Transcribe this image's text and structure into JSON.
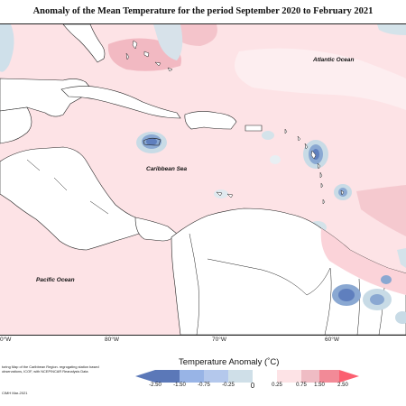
{
  "title": "Anomaly of the Mean Temperature for the period September 2020 to February 2021",
  "labels": {
    "atlantic": "Atlantic Ocean",
    "caribbean": "Caribbean Sea",
    "pacific": "Pacific Ocean"
  },
  "longitudes": [
    "0°W",
    "80°W",
    "70°W",
    "60°W"
  ],
  "footnote": "toring Map of the Caribbean Region. regrogating station based observations, ICOF, with NCEP/NCAR Reanalysis Data",
  "copyright": "CIMH Mar-2021",
  "legend": {
    "title": "Temperature Anomaly (˚C)",
    "ticks": [
      "-2.50",
      "-1.50",
      "-0.75",
      "-0.25",
      "0",
      "0.25",
      "0.75",
      "1.50",
      "2.50"
    ],
    "colors": [
      "#5b78b8",
      "#98b4e6",
      "#b4c8ec",
      "#cfdfe8",
      "#ffffff",
      "#fde3e6",
      "#efbcc4",
      "#f28a97",
      "#fb5f70"
    ]
  },
  "map_colors": {
    "warm": "#fde3e6",
    "warmer": "#f2b9c2",
    "cool_light": "#c8dbe6",
    "cool": "#8aa8d2",
    "cool_deep": "#5f7fbe",
    "land": "#ffffff"
  }
}
